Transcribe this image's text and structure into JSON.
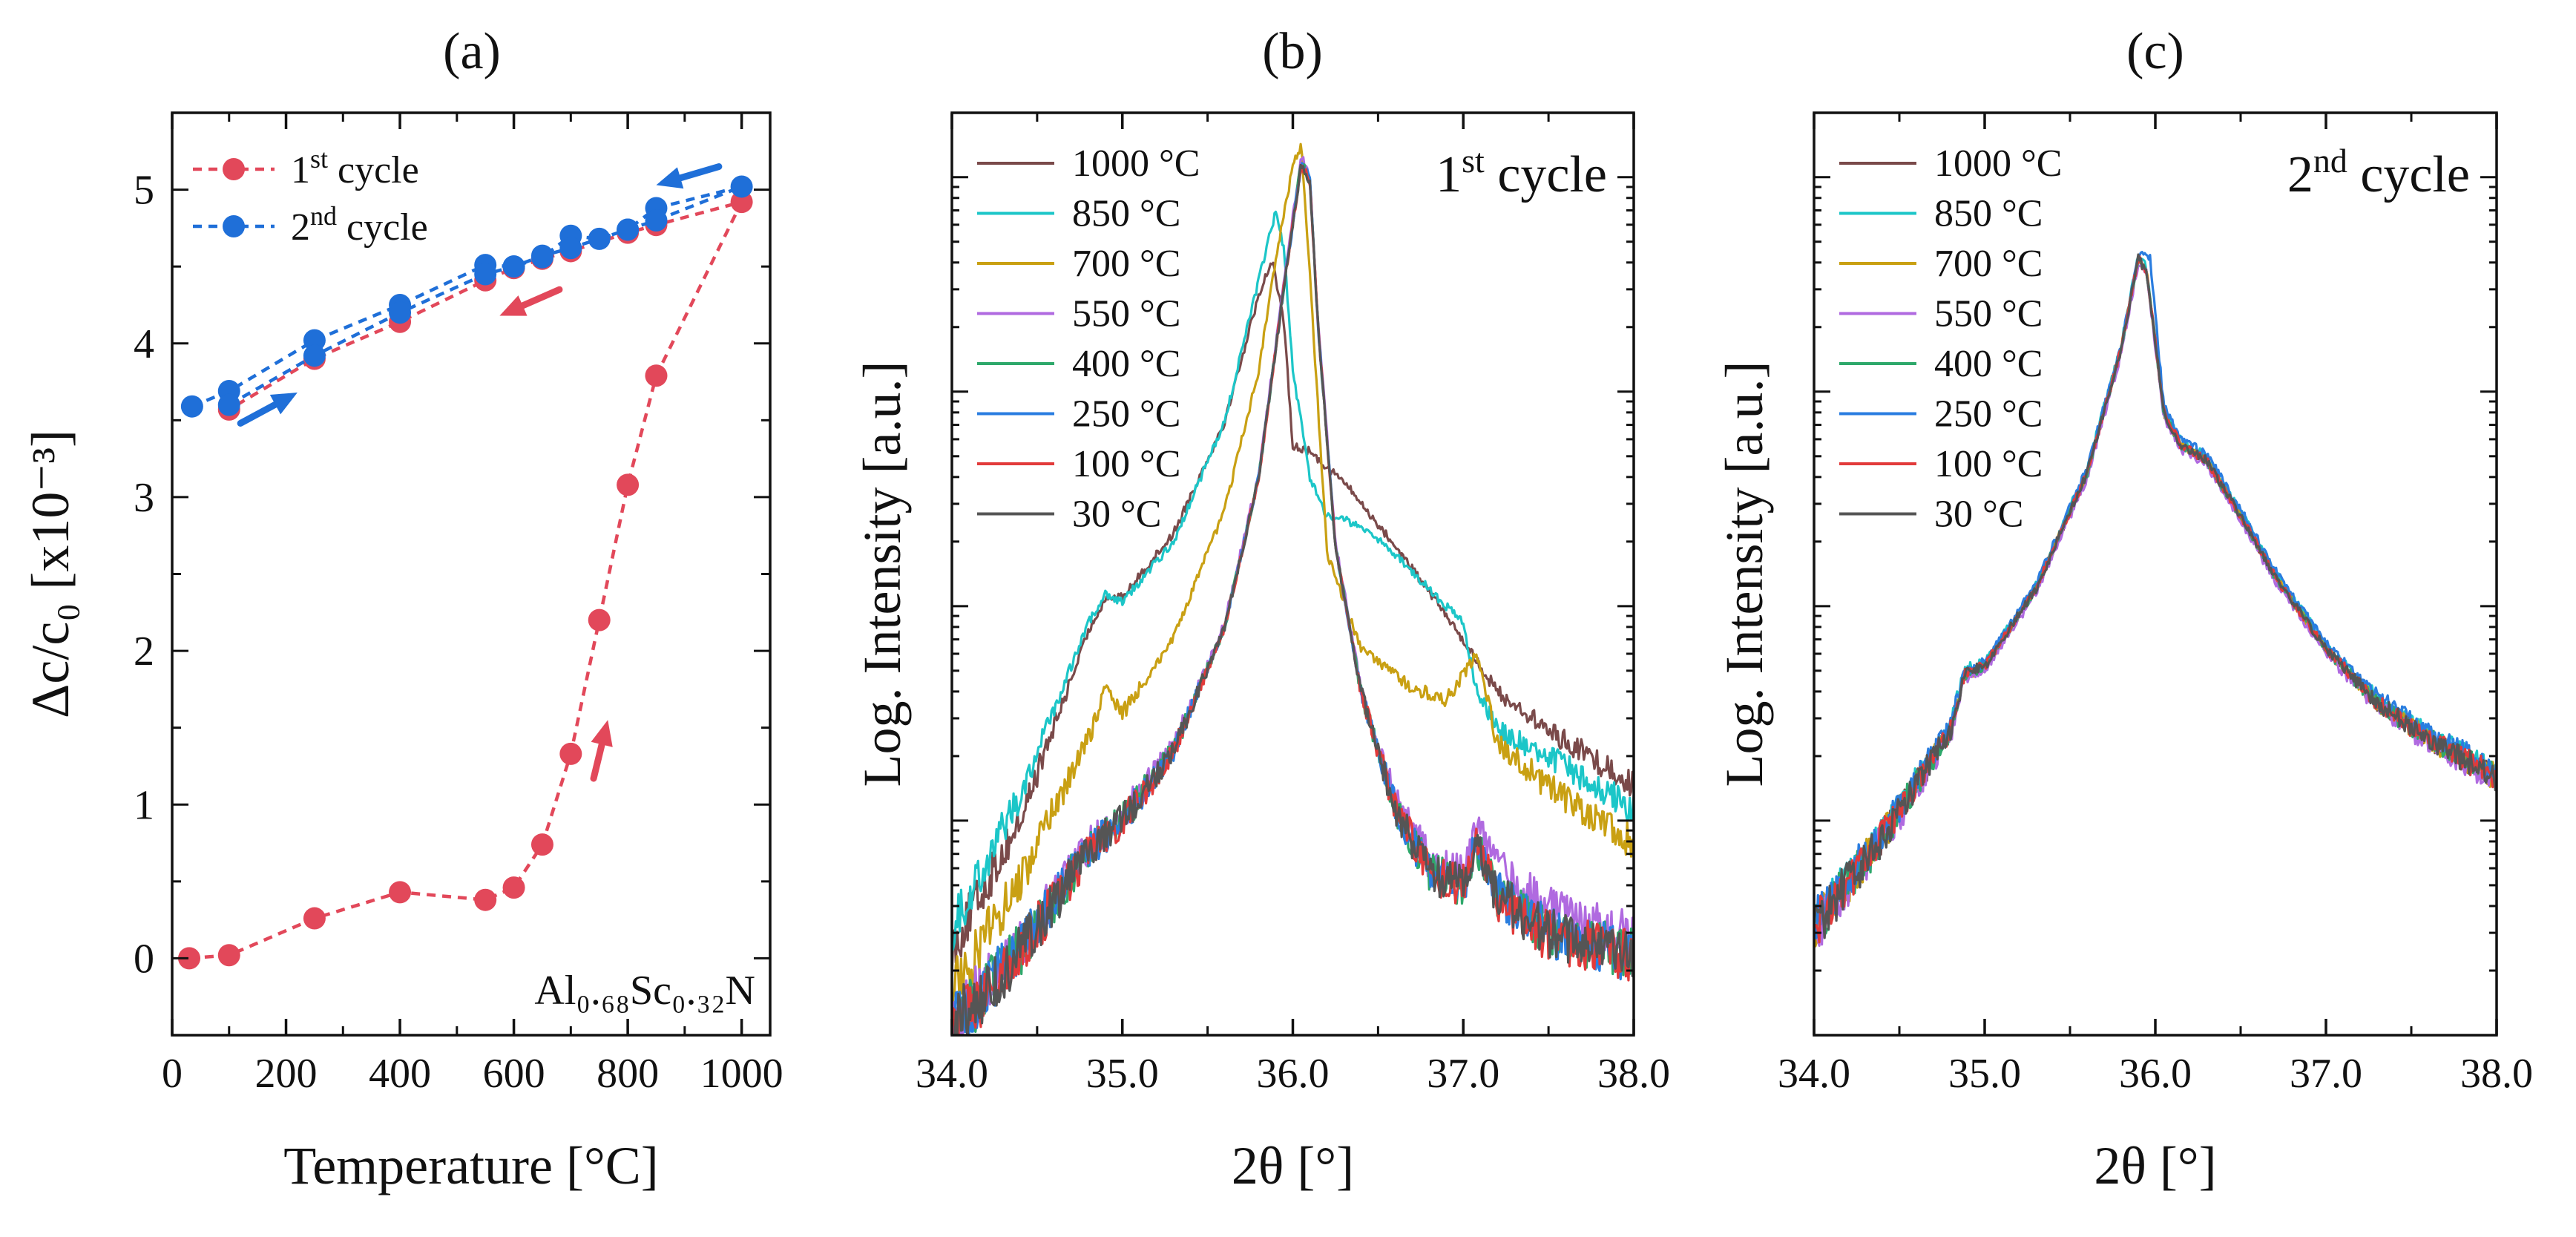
{
  "chart_data": [
    {
      "id": "a",
      "type": "line",
      "panel_label": "(a)",
      "xlabel": "Temperature [°C]",
      "ylabel": "Δc/c₀ [x10⁻³]",
      "xlim": [
        0,
        1050
      ],
      "ylim": [
        -0.5,
        5.5
      ],
      "xticks": [
        0,
        200,
        400,
        600,
        800,
        1000
      ],
      "xtick_labels": [
        "0",
        "200",
        "400",
        "600",
        "800",
        "1000"
      ],
      "yticks": [
        0,
        1,
        2,
        3,
        4,
        5
      ],
      "ytick_labels": [
        "0",
        "1",
        "2",
        "3",
        "4",
        "5"
      ],
      "legend_position": "top-left",
      "annotation": "Al₀.₆₈Sc₀.₃₂N",
      "colors": {
        "first": "#e2485a",
        "second": "#1f6fd8"
      },
      "series": [
        {
          "name": "1st cycle",
          "legend_base": "1",
          "legend_sup": "st",
          "legend_rest": " cycle",
          "color": "#e2485a",
          "x": [
            30,
            100,
            250,
            400,
            550,
            600,
            650,
            700,
            750,
            800,
            850,
            1000,
            850,
            800,
            700,
            650,
            600,
            550,
            400,
            250,
            100
          ],
          "y": [
            0.0,
            0.02,
            0.26,
            0.43,
            0.38,
            0.46,
            0.74,
            1.33,
            2.2,
            3.08,
            3.79,
            4.92,
            4.77,
            4.72,
            4.6,
            4.55,
            4.49,
            4.41,
            4.14,
            3.9,
            3.57
          ]
        },
        {
          "name": "2nd cycle",
          "legend_base": "2",
          "legend_sup": "nd",
          "legend_rest": " cycle",
          "color": "#1f6fd8",
          "x": [
            35,
            100,
            250,
            400,
            550,
            600,
            650,
            700,
            750,
            800,
            850,
            1000,
            850,
            800,
            700,
            650,
            600,
            550,
            400,
            250,
            100
          ],
          "y": [
            3.59,
            3.69,
            4.02,
            4.25,
            4.51,
            4.5,
            4.56,
            4.7,
            4.68,
            4.74,
            4.88,
            5.02,
            4.8,
            4.74,
            4.62,
            4.57,
            4.5,
            4.45,
            4.2,
            3.92,
            3.6
          ]
        }
      ],
      "arrows": [
        {
          "color": "#1f6fd8",
          "from": [
            960,
            5.15
          ],
          "to": [
            850,
            5.03
          ]
        },
        {
          "color": "#e2485a",
          "from": [
            680,
            4.35
          ],
          "to": [
            575,
            4.18
          ]
        },
        {
          "color": "#1f6fd8",
          "from": [
            120,
            3.48
          ],
          "to": [
            220,
            3.68
          ]
        },
        {
          "color": "#e2485a",
          "from": [
            740,
            1.17
          ],
          "to": [
            765,
            1.55
          ]
        }
      ]
    },
    {
      "id": "b",
      "type": "line",
      "panel_label": "(b)",
      "xlabel": "2θ [°]",
      "ylabel": "Log. Intensity [a.u.]",
      "xlim": [
        34.0,
        38.0
      ],
      "xticks": [
        34.0,
        35.0,
        36.0,
        37.0,
        38.0
      ],
      "xtick_labels": [
        "34.0",
        "35.0",
        "36.0",
        "37.0",
        "38.0"
      ],
      "yscale": "log",
      "ylim_log10": [
        0,
        4.3
      ],
      "cycle_base": "1",
      "cycle_sup": "st",
      "cycle_rest": " cycle",
      "legend_position": "top-left",
      "series": [
        {
          "name": "1000 °C",
          "color": "#7a4a4a",
          "x": [
            34.0,
            34.4,
            34.8,
            34.9,
            35.0,
            35.3,
            35.6,
            35.8,
            35.88,
            35.95,
            36.0,
            36.1,
            36.3,
            36.6,
            36.9,
            37.2,
            37.5,
            38.0
          ],
          "y": [
            0.4,
            1.0,
            1.88,
            2.04,
            2.04,
            2.34,
            2.86,
            3.45,
            3.62,
            3.3,
            2.75,
            2.72,
            2.58,
            2.28,
            1.96,
            1.6,
            1.42,
            1.17
          ]
        },
        {
          "name": "850 °C",
          "color": "#1cc6c8",
          "x": [
            34.0,
            34.4,
            34.8,
            34.9,
            35.0,
            35.3,
            35.6,
            35.8,
            35.9,
            35.95,
            36.0,
            36.1,
            36.2,
            36.4,
            36.6,
            36.8,
            37.0,
            37.08,
            37.2,
            37.5,
            38.0
          ],
          "y": [
            0.5,
            1.12,
            1.92,
            2.06,
            2.02,
            2.3,
            2.86,
            3.52,
            3.84,
            3.65,
            3.1,
            2.6,
            2.42,
            2.38,
            2.24,
            2.08,
            1.92,
            1.6,
            1.42,
            1.3,
            1.05
          ]
        },
        {
          "name": "700 °C",
          "color": "#c9a013",
          "x": [
            34.0,
            34.4,
            34.8,
            34.9,
            35.0,
            35.3,
            35.6,
            35.8,
            35.9,
            36.0,
            36.05,
            36.1,
            36.2,
            36.4,
            36.7,
            36.9,
            37.08,
            37.2,
            37.5,
            38.0
          ],
          "y": [
            0.2,
            0.72,
            1.38,
            1.62,
            1.5,
            1.85,
            2.45,
            3.1,
            3.62,
            4.05,
            4.15,
            3.55,
            2.25,
            1.8,
            1.62,
            1.56,
            1.78,
            1.36,
            1.16,
            0.9
          ]
        },
        {
          "name": "550 °C",
          "color": "#b06ae0",
          "x": [
            34.0,
            34.4,
            34.8,
            35.0,
            35.3,
            35.6,
            35.8,
            35.95,
            36.05,
            36.1,
            36.15,
            36.25,
            36.4,
            36.6,
            36.8,
            37.0,
            37.08,
            37.2,
            37.5,
            38.0
          ],
          "y": [
            0.06,
            0.42,
            0.88,
            1.02,
            1.35,
            1.92,
            2.62,
            3.52,
            4.1,
            4.0,
            3.3,
            2.3,
            1.62,
            1.1,
            0.82,
            0.76,
            0.98,
            0.78,
            0.58,
            0.46
          ]
        },
        {
          "name": "400 °C",
          "color": "#2ea86b",
          "x": [
            34.0,
            34.4,
            34.8,
            35.0,
            35.3,
            35.6,
            35.8,
            35.95,
            36.05,
            36.1,
            36.15,
            36.25,
            36.4,
            36.6,
            36.8,
            37.0,
            37.08,
            37.2,
            37.5,
            38.0
          ],
          "y": [
            0.02,
            0.4,
            0.86,
            1.0,
            1.33,
            1.9,
            2.6,
            3.5,
            4.08,
            3.98,
            3.28,
            2.28,
            1.6,
            1.06,
            0.76,
            0.7,
            0.88,
            0.66,
            0.48,
            0.38
          ]
        },
        {
          "name": "250 °C",
          "color": "#2a7de0",
          "x": [
            34.0,
            34.4,
            34.8,
            35.0,
            35.3,
            35.6,
            35.8,
            35.95,
            36.05,
            36.1,
            36.15,
            36.25,
            36.4,
            36.6,
            36.8,
            37.0,
            37.08,
            37.2,
            37.5,
            38.0
          ],
          "y": [
            0.04,
            0.4,
            0.86,
            1.0,
            1.33,
            1.9,
            2.6,
            3.5,
            4.06,
            4.0,
            3.28,
            2.28,
            1.6,
            1.06,
            0.76,
            0.7,
            0.9,
            0.66,
            0.48,
            0.36
          ]
        },
        {
          "name": "100 °C",
          "color": "#e23a3a",
          "x": [
            34.0,
            34.4,
            34.8,
            35.0,
            35.3,
            35.6,
            35.8,
            35.95,
            36.05,
            36.1,
            36.15,
            36.25,
            36.4,
            36.6,
            36.8,
            37.0,
            37.08,
            37.2,
            37.5,
            38.0
          ],
          "y": [
            0.02,
            0.38,
            0.85,
            0.99,
            1.32,
            1.9,
            2.6,
            3.5,
            4.06,
            3.98,
            3.28,
            2.28,
            1.6,
            1.06,
            0.76,
            0.7,
            0.9,
            0.64,
            0.46,
            0.36
          ]
        },
        {
          "name": "30 °C",
          "color": "#555555",
          "x": [
            34.0,
            34.4,
            34.8,
            35.0,
            35.3,
            35.6,
            35.8,
            35.95,
            36.05,
            36.1,
            36.15,
            36.25,
            36.4,
            36.6,
            36.8,
            37.0,
            37.08,
            37.2,
            37.5,
            38.0
          ],
          "y": [
            0.03,
            0.39,
            0.85,
            1.0,
            1.33,
            1.9,
            2.6,
            3.5,
            4.06,
            3.98,
            3.28,
            2.28,
            1.6,
            1.06,
            0.76,
            0.7,
            0.89,
            0.65,
            0.47,
            0.37
          ]
        }
      ]
    },
    {
      "id": "c",
      "type": "line",
      "panel_label": "(c)",
      "xlabel": "2θ [°]",
      "ylabel": "Log. Intensity [a.u.]",
      "xlim": [
        34.0,
        38.0
      ],
      "xticks": [
        34.0,
        35.0,
        36.0,
        37.0,
        38.0
      ],
      "xtick_labels": [
        "34.0",
        "35.0",
        "36.0",
        "37.0",
        "38.0"
      ],
      "yscale": "log",
      "ylim_log10": [
        0,
        4.3
      ],
      "cycle_base": "2",
      "cycle_sup": "nd",
      "cycle_rest": " cycle",
      "legend_position": "top-left",
      "series": [
        {
          "name": "1000 °C",
          "color": "#7a4a4a",
          "x": [
            34.0,
            34.4,
            34.8,
            34.88,
            35.0,
            35.3,
            35.6,
            35.8,
            35.9,
            35.95,
            36.05,
            36.15,
            36.3,
            36.5,
            36.7,
            37.0,
            37.3,
            37.6,
            38.0
          ],
          "y": [
            0.5,
            0.92,
            1.42,
            1.68,
            1.72,
            2.08,
            2.62,
            3.2,
            3.62,
            3.55,
            2.9,
            2.75,
            2.68,
            2.42,
            2.14,
            1.8,
            1.55,
            1.38,
            1.2
          ]
        },
        {
          "name": "850 °C",
          "color": "#1cc6c8",
          "x": [
            34.0,
            34.4,
            34.8,
            34.88,
            35.0,
            35.3,
            35.6,
            35.8,
            35.9,
            35.95,
            36.05,
            36.15,
            36.3,
            36.5,
            36.7,
            37.0,
            37.3,
            37.6,
            38.0
          ],
          "y": [
            0.52,
            0.94,
            1.44,
            1.7,
            1.74,
            2.1,
            2.64,
            3.22,
            3.64,
            3.58,
            2.92,
            2.77,
            2.7,
            2.44,
            2.16,
            1.82,
            1.57,
            1.4,
            1.22
          ]
        },
        {
          "name": "700 °C",
          "color": "#c9a013",
          "x": [
            34.0,
            34.4,
            34.8,
            34.88,
            35.0,
            35.3,
            35.6,
            35.8,
            35.9,
            35.95,
            36.05,
            36.15,
            36.3,
            36.5,
            36.7,
            37.0,
            37.3,
            37.6,
            38.0
          ],
          "y": [
            0.5,
            0.92,
            1.42,
            1.68,
            1.72,
            2.08,
            2.62,
            3.2,
            3.62,
            3.56,
            2.9,
            2.75,
            2.68,
            2.42,
            2.14,
            1.8,
            1.55,
            1.38,
            1.2
          ]
        },
        {
          "name": "550 °C",
          "color": "#b06ae0",
          "x": [
            34.0,
            34.4,
            34.8,
            34.88,
            35.0,
            35.3,
            35.6,
            35.8,
            35.9,
            35.95,
            36.05,
            36.15,
            36.3,
            36.5,
            36.7,
            37.0,
            37.3,
            37.6,
            38.0
          ],
          "y": [
            0.48,
            0.9,
            1.4,
            1.66,
            1.7,
            2.06,
            2.6,
            3.18,
            3.6,
            3.55,
            2.88,
            2.73,
            2.66,
            2.4,
            2.12,
            1.78,
            1.53,
            1.36,
            1.18
          ]
        },
        {
          "name": "400 °C",
          "color": "#2ea86b",
          "x": [
            34.0,
            34.4,
            34.8,
            34.88,
            35.0,
            35.3,
            35.6,
            35.8,
            35.9,
            35.95,
            36.05,
            36.15,
            36.3,
            36.5,
            36.7,
            37.0,
            37.3,
            37.6,
            38.0
          ],
          "y": [
            0.5,
            0.92,
            1.42,
            1.68,
            1.72,
            2.08,
            2.62,
            3.2,
            3.62,
            3.56,
            2.9,
            2.75,
            2.68,
            2.42,
            2.14,
            1.8,
            1.55,
            1.38,
            1.2
          ]
        },
        {
          "name": "250 °C",
          "color": "#2a7de0",
          "x": [
            34.0,
            34.4,
            34.8,
            34.88,
            35.0,
            35.3,
            35.6,
            35.8,
            35.9,
            35.97,
            36.05,
            36.15,
            36.3,
            36.5,
            36.7,
            37.0,
            37.3,
            37.6,
            38.0
          ],
          "y": [
            0.52,
            0.94,
            1.44,
            1.7,
            1.74,
            2.1,
            2.64,
            3.22,
            3.64,
            3.62,
            2.93,
            2.78,
            2.71,
            2.45,
            2.17,
            1.83,
            1.58,
            1.41,
            1.23
          ]
        },
        {
          "name": "100 °C",
          "color": "#e23a3a",
          "x": [
            34.0,
            34.4,
            34.8,
            34.88,
            35.0,
            35.3,
            35.6,
            35.8,
            35.9,
            35.95,
            36.05,
            36.15,
            36.3,
            36.5,
            36.7,
            37.0,
            37.3,
            37.6,
            38.0
          ],
          "y": [
            0.5,
            0.92,
            1.42,
            1.68,
            1.72,
            2.08,
            2.62,
            3.2,
            3.62,
            3.56,
            2.9,
            2.75,
            2.68,
            2.42,
            2.14,
            1.8,
            1.55,
            1.38,
            1.2
          ]
        },
        {
          "name": "30 °C",
          "color": "#555555",
          "x": [
            34.0,
            34.4,
            34.8,
            34.88,
            35.0,
            35.3,
            35.6,
            35.8,
            35.9,
            35.95,
            36.05,
            36.15,
            36.3,
            36.5,
            36.7,
            37.0,
            37.3,
            37.6,
            38.0
          ],
          "y": [
            0.5,
            0.92,
            1.42,
            1.68,
            1.72,
            2.08,
            2.62,
            3.2,
            3.62,
            3.56,
            2.9,
            2.75,
            2.68,
            2.42,
            2.14,
            1.8,
            1.55,
            1.38,
            1.2
          ]
        }
      ]
    }
  ]
}
